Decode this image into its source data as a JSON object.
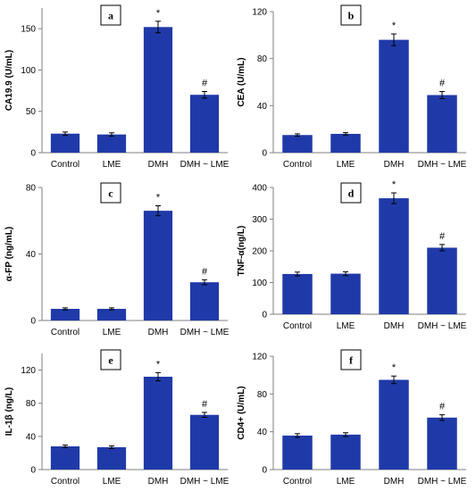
{
  "figure": {
    "bar_color": "#1f3aa8",
    "axis_color": "#7f7f7f",
    "box_color": "#000000"
  },
  "chart_data": [
    {
      "type": "bar",
      "panel": "a",
      "ylabel": "CA19.9 (U/mL)",
      "categories": [
        "Control",
        "LME",
        "DMH",
        "DMH ~ LME"
      ],
      "values": [
        23,
        22,
        152,
        70
      ],
      "errors": [
        2,
        2,
        7,
        4
      ],
      "annotations": [
        "",
        "",
        "*",
        "#"
      ],
      "ylim": [
        0,
        175
      ],
      "yticks": [
        "0",
        "50",
        "100",
        "150"
      ],
      "ytick_values": [
        0,
        50,
        100,
        150
      ],
      "grid": false
    },
    {
      "type": "bar",
      "panel": "b",
      "ylabel": "CEA (U/mL)",
      "categories": [
        "Control",
        "LME",
        "DMH",
        "DMH ~ LME"
      ],
      "values": [
        15,
        16,
        96,
        49
      ],
      "errors": [
        1,
        1,
        5,
        3
      ],
      "annotations": [
        "",
        "",
        "*",
        "#"
      ],
      "ylim": [
        0,
        120
      ],
      "yticks": [
        "0",
        "40",
        "80",
        "120"
      ],
      "ytick_values": [
        0,
        40,
        80,
        120
      ],
      "grid": false
    },
    {
      "type": "bar",
      "panel": "c",
      "ylabel": "α-FP (ng/mL)",
      "categories": [
        "Control",
        "LME",
        "DMH",
        "DMH ~ LME"
      ],
      "values": [
        7,
        7,
        66,
        23
      ],
      "errors": [
        0.6,
        0.6,
        3,
        1.5
      ],
      "annotations": [
        "",
        "",
        "*",
        "#"
      ],
      "ylim": [
        0,
        80
      ],
      "yticks": [
        "0",
        "40",
        "80"
      ],
      "ytick_values": [
        0,
        40,
        80
      ],
      "grid": false
    },
    {
      "type": "bar",
      "panel": "d",
      "ylabel": "TNF-α(ng/L)",
      "categories": [
        "Control",
        "LME",
        "DMH",
        "DMH ~ LME"
      ],
      "values": [
        127,
        128,
        366,
        210
      ],
      "errors": [
        6,
        6,
        17,
        10
      ],
      "annotations": [
        "",
        "",
        "*",
        "#"
      ],
      "ylim": [
        0,
        400
      ],
      "yticks": [
        "0",
        "100",
        "200",
        "300",
        "400"
      ],
      "ytick_values": [
        0,
        100,
        200,
        300,
        400
      ],
      "grid": false
    },
    {
      "type": "bar",
      "panel": "e",
      "ylabel": "IL-1β (ng/L)",
      "categories": [
        "Control",
        "LME",
        "DMH",
        "DMH ~ LME"
      ],
      "values": [
        28,
        27,
        112,
        66
      ],
      "errors": [
        1.5,
        1.5,
        5,
        3
      ],
      "annotations": [
        "",
        "",
        "*",
        "#"
      ],
      "ylim": [
        0,
        140
      ],
      "yticks": [
        "0",
        "40",
        "80",
        "120"
      ],
      "ytick_values": [
        0,
        40,
        80,
        120
      ],
      "grid": false
    },
    {
      "type": "bar",
      "panel": "f",
      "ylabel": "CD4+ (U/mL)",
      "categories": [
        "Control",
        "LME",
        "DMH",
        "DMH ~ LME"
      ],
      "values": [
        36,
        37,
        95,
        55
      ],
      "errors": [
        2,
        2,
        4,
        3
      ],
      "annotations": [
        "",
        "",
        "*",
        "#"
      ],
      "ylim": [
        0,
        120
      ],
      "yticks": [
        "0",
        "40",
        "80",
        "120"
      ],
      "ytick_values": [
        0,
        40,
        80,
        120
      ],
      "grid": false
    }
  ]
}
